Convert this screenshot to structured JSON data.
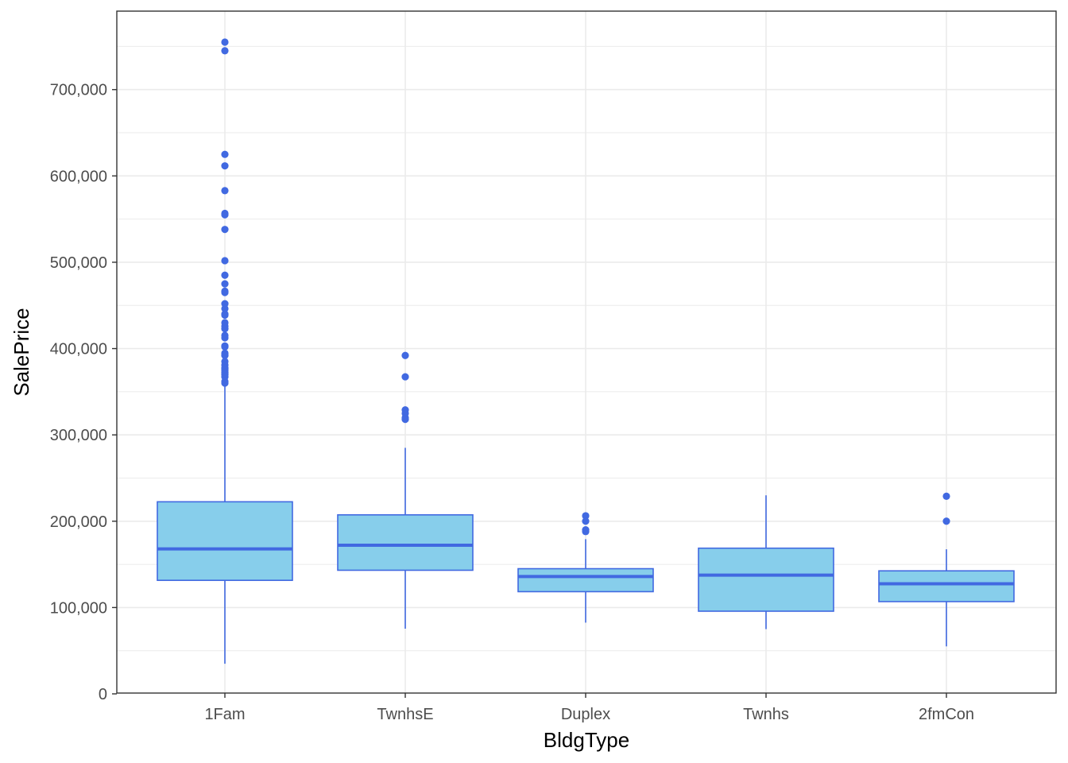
{
  "chart_data": {
    "type": "boxplot",
    "title": "",
    "xlabel": "BldgType",
    "ylabel": "SalePrice",
    "ylim": [
      0,
      790000
    ],
    "yticks": [
      0,
      100000,
      200000,
      300000,
      400000,
      500000,
      600000,
      700000
    ],
    "ytick_labels": [
      "0",
      "100,000",
      "200,000",
      "300,000",
      "400,000",
      "500,000",
      "600,000",
      "700,000"
    ],
    "grid": true,
    "colors": {
      "fill": "#87ceeb",
      "stroke": "#4169e1",
      "grid": "#ebebeb",
      "border": "#333333"
    },
    "categories": [
      "1Fam",
      "TwnhsE",
      "Duplex",
      "Twnhs",
      "2fmCon"
    ],
    "boxes": [
      {
        "category": "1Fam",
        "whisker_low": 34900,
        "q1": 131500,
        "median": 167900,
        "q3": 222500,
        "whisker_high": 359100,
        "outliers": [
          755000,
          745000,
          625000,
          611657,
          582933,
          556581,
          555000,
          538000,
          501837,
          485000,
          475000,
          466500,
          465000,
          451950,
          446261,
          440000,
          438780,
          430000,
          426000,
          423000,
          415298,
          412500,
          403000,
          402861,
          402000,
          394617,
          392500,
          392000,
          385000,
          381000,
          377500,
          377426,
          375000,
          372500,
          372402,
          370878,
          369900,
          367294,
          361919,
          360000
        ]
      },
      {
        "category": "TwnhsE",
        "whisker_low": 75500,
        "q1": 143187,
        "median": 172200,
        "q3": 207375,
        "whisker_high": 285000,
        "outliers": [
          392000,
          367294,
          328900,
          325000,
          320000,
          318000
        ]
      },
      {
        "category": "Duplex",
        "whisker_low": 82500,
        "q1": 118375,
        "median": 135980,
        "q3": 145000,
        "whisker_high": 179200,
        "outliers": [
          206300,
          200000,
          190000,
          188000
        ]
      },
      {
        "category": "Twnhs",
        "whisker_low": 75000,
        "q1": 95750,
        "median": 137500,
        "q3": 168750,
        "whisker_high": 230000,
        "outliers": []
      },
      {
        "category": "2fmCon",
        "whisker_low": 55000,
        "q1": 106875,
        "median": 127500,
        "q3": 142500,
        "whisker_high": 167500,
        "outliers": [
          228950,
          200000
        ]
      }
    ]
  }
}
